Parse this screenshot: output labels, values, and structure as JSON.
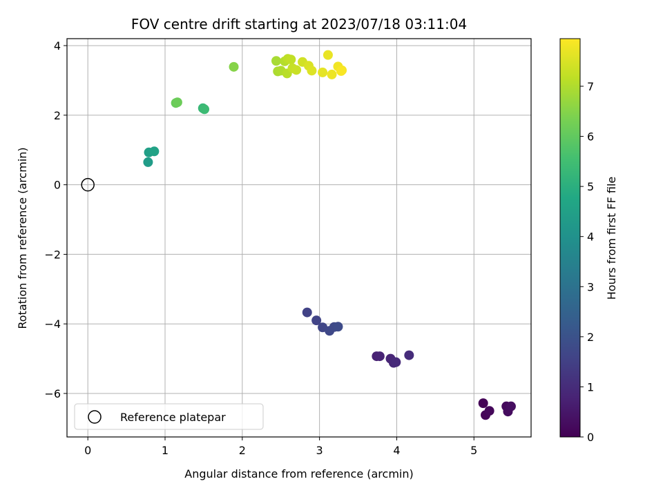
{
  "chart_data": {
    "type": "scatter",
    "title": "FOV centre drift starting at 2023/07/18 03:11:04",
    "xlabel": "Angular distance from reference (arcmin)",
    "ylabel": "Rotation from reference (arcmin)",
    "xlim": [
      -0.27,
      5.74
    ],
    "ylim": [
      -7.25,
      4.2
    ],
    "xticks": [
      0,
      1,
      2,
      3,
      4,
      5
    ],
    "xtick_labels": [
      "0",
      "1",
      "2",
      "3",
      "4",
      "5"
    ],
    "yticks": [
      -6,
      -4,
      -2,
      0,
      2,
      4
    ],
    "ytick_labels": [
      "−6",
      "−4",
      "−2",
      "0",
      "2",
      "4"
    ],
    "grid": true,
    "colormap": "viridis",
    "colorbar": {
      "label": "Hours from first FF file",
      "range": [
        0,
        7.95
      ],
      "ticks": [
        0,
        1,
        2,
        3,
        4,
        5,
        6,
        7
      ],
      "tick_labels": [
        "0",
        "1",
        "2",
        "3",
        "4",
        "5",
        "6",
        "7"
      ]
    },
    "reference": {
      "x": 0,
      "y": 0,
      "label": "Reference platepar"
    },
    "legend_position": "lower-left",
    "points": [
      {
        "x": 5.12,
        "y": -6.28,
        "h": 0.05
      },
      {
        "x": 5.15,
        "y": -6.62,
        "h": 0.1
      },
      {
        "x": 5.2,
        "y": -6.5,
        "h": 0.15
      },
      {
        "x": 5.42,
        "y": -6.37,
        "h": 0.2
      },
      {
        "x": 5.44,
        "y": -6.52,
        "h": 0.25
      },
      {
        "x": 5.48,
        "y": -6.37,
        "h": 0.3
      },
      {
        "x": 3.74,
        "y": -4.93,
        "h": 0.75
      },
      {
        "x": 3.78,
        "y": -4.93,
        "h": 0.8
      },
      {
        "x": 3.92,
        "y": -5.0,
        "h": 0.85
      },
      {
        "x": 3.96,
        "y": -5.12,
        "h": 0.9
      },
      {
        "x": 3.99,
        "y": -5.1,
        "h": 0.95
      },
      {
        "x": 4.16,
        "y": -4.9,
        "h": 1.0
      },
      {
        "x": 2.84,
        "y": -3.67,
        "h": 1.55
      },
      {
        "x": 2.96,
        "y": -3.9,
        "h": 1.6
      },
      {
        "x": 3.04,
        "y": -4.1,
        "h": 1.65
      },
      {
        "x": 3.13,
        "y": -4.2,
        "h": 1.7
      },
      {
        "x": 3.19,
        "y": -4.09,
        "h": 1.75
      },
      {
        "x": 3.24,
        "y": -4.08,
        "h": 1.8
      },
      {
        "x": 0.78,
        "y": 0.65,
        "h": 4.35
      },
      {
        "x": 0.79,
        "y": 0.93,
        "h": 4.45
      },
      {
        "x": 0.86,
        "y": 0.96,
        "h": 4.55
      },
      {
        "x": 1.49,
        "y": 2.2,
        "h": 5.3
      },
      {
        "x": 1.51,
        "y": 2.17,
        "h": 5.4
      },
      {
        "x": 1.14,
        "y": 2.35,
        "h": 6.1
      },
      {
        "x": 1.16,
        "y": 2.37,
        "h": 6.15
      },
      {
        "x": 1.89,
        "y": 3.39,
        "h": 6.5
      },
      {
        "x": 2.44,
        "y": 3.56,
        "h": 6.9
      },
      {
        "x": 2.46,
        "y": 3.26,
        "h": 6.95
      },
      {
        "x": 2.5,
        "y": 3.28,
        "h": 7.0
      },
      {
        "x": 2.55,
        "y": 3.55,
        "h": 7.05
      },
      {
        "x": 2.58,
        "y": 3.2,
        "h": 7.1
      },
      {
        "x": 2.59,
        "y": 3.62,
        "h": 7.15
      },
      {
        "x": 2.63,
        "y": 3.6,
        "h": 7.2
      },
      {
        "x": 2.65,
        "y": 3.35,
        "h": 7.25
      },
      {
        "x": 2.7,
        "y": 3.3,
        "h": 7.3
      },
      {
        "x": 2.78,
        "y": 3.53,
        "h": 7.4
      },
      {
        "x": 2.86,
        "y": 3.42,
        "h": 7.5
      },
      {
        "x": 2.9,
        "y": 3.28,
        "h": 7.55
      },
      {
        "x": 3.04,
        "y": 3.23,
        "h": 7.65
      },
      {
        "x": 3.11,
        "y": 3.73,
        "h": 7.7
      },
      {
        "x": 3.16,
        "y": 3.17,
        "h": 7.75
      },
      {
        "x": 3.24,
        "y": 3.4,
        "h": 7.8
      },
      {
        "x": 3.29,
        "y": 3.29,
        "h": 7.85
      },
      {
        "x": 3.28,
        "y": 3.27,
        "h": 7.9
      }
    ]
  }
}
